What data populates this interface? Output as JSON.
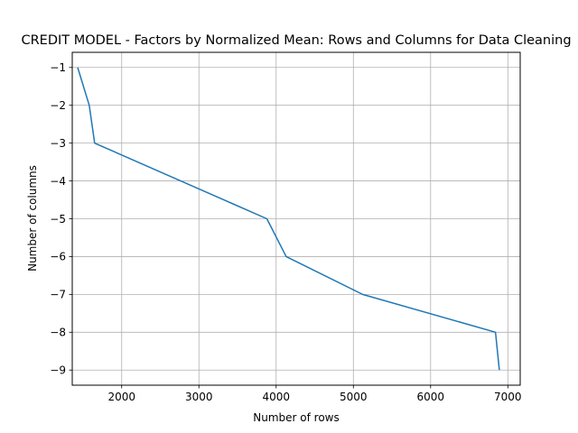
{
  "chart_data": {
    "type": "line",
    "title": "CREDIT MODEL - Factors by Normalized Mean: Rows and Columns for Data Cleaning",
    "xlabel": "Number of rows",
    "ylabel": "Number of columns",
    "xlim": [
      1360,
      7160
    ],
    "ylim": [
      -9.4,
      -0.6
    ],
    "xticks": [
      2000,
      3000,
      4000,
      5000,
      6000,
      7000
    ],
    "yticks": [
      -1,
      -2,
      -3,
      -4,
      -5,
      -6,
      -7,
      -8,
      -9
    ],
    "xtick_labels": [
      "2000",
      "3000",
      "4000",
      "5000",
      "6000",
      "7000"
    ],
    "ytick_labels": [
      "−1",
      "−2",
      "−3",
      "−4",
      "−5",
      "−6",
      "−7",
      "−8",
      "−9"
    ],
    "grid": true,
    "series": [
      {
        "color": "#1f77b4",
        "x": [
          1430,
          1580,
          1650,
          3880,
          4130,
          5120,
          6840,
          6890
        ],
        "y": [
          -1,
          -2,
          -3,
          -5,
          -6,
          -7,
          -8,
          -9
        ]
      }
    ]
  }
}
